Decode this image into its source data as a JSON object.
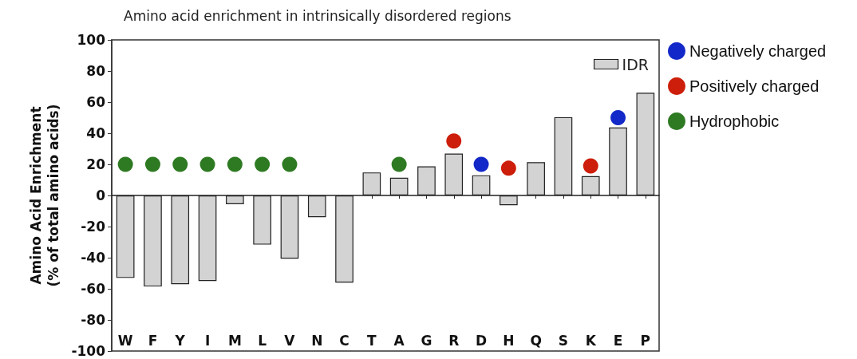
{
  "chart_data": {
    "type": "bar",
    "title": "Amino acid enrichment in intrinsically disordered regions",
    "ylabel": "Amino Acid Enrichment\n(% of total amino acids)",
    "categories": [
      "W",
      "F",
      "Y",
      "I",
      "M",
      "L",
      "V",
      "N",
      "C",
      "T",
      "A",
      "G",
      "R",
      "D",
      "H",
      "Q",
      "S",
      "K",
      "E",
      "P"
    ],
    "series": [
      {
        "name": "IDR",
        "color": "#d3d3d3",
        "values": [
          -53,
          -58.5,
          -57,
          -55,
          -5.6,
          -31.6,
          -40.6,
          -14,
          -56,
          14.8,
          11.4,
          18.7,
          26.9,
          13,
          -6.3,
          21.4,
          50.3,
          12.4,
          43.7,
          66
        ]
      },
      {
        "name": "Negatively charged",
        "type": "scatter",
        "color": "#1328c8",
        "x": [
          "D",
          "E"
        ],
        "values": [
          20,
          50
        ]
      },
      {
        "name": "Positively charged",
        "type": "scatter",
        "color": "#cc1e0a",
        "x": [
          "R",
          "H",
          "K"
        ],
        "values": [
          35,
          17.5,
          19
        ]
      },
      {
        "name": "Hydrophobic",
        "type": "scatter",
        "color": "#2e7a22",
        "x": [
          "W",
          "F",
          "Y",
          "I",
          "M",
          "L",
          "V",
          "A"
        ],
        "values": [
          20,
          20,
          20,
          20,
          20,
          20,
          20,
          20
        ]
      }
    ],
    "ylim": [
      -100,
      100
    ],
    "yticks": [
      -100,
      -80,
      -60,
      -40,
      -20,
      0,
      20,
      40,
      60,
      80,
      100
    ],
    "legend": "right",
    "marker": "circle"
  }
}
